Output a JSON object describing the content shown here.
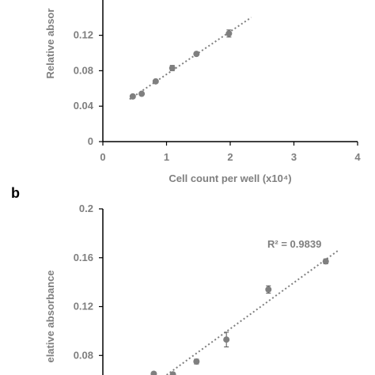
{
  "colors": {
    "axis": "#000000",
    "text": "#7f7f7f",
    "marker": "#7f7f7f",
    "trendline": "#7f7f7f"
  },
  "chart_data": [
    {
      "type": "scatter",
      "panel_label": "",
      "title": "",
      "xlabel": "Cell count per well (x10⁴)",
      "ylabel": "Relative absor",
      "xlim": [
        0,
        4
      ],
      "ylim": [
        0,
        0.15
      ],
      "x_ticks": [
        "0",
        "1",
        "2",
        "3",
        "4"
      ],
      "y_ticks": [
        "0",
        "0.04",
        "0.08",
        "0.12"
      ],
      "grid": false,
      "trendline": "linear dotted",
      "r_squared_label": "",
      "points": [
        {
          "x": 0.47,
          "y": 0.051,
          "err": 0.0
        },
        {
          "x": 0.61,
          "y": 0.054,
          "err": 0.0
        },
        {
          "x": 0.83,
          "y": 0.068,
          "err": 0.0
        },
        {
          "x": 1.09,
          "y": 0.083,
          "err": 0.003
        },
        {
          "x": 1.47,
          "y": 0.099,
          "err": 0.0
        },
        {
          "x": 1.98,
          "y": 0.122,
          "err": 0.004
        }
      ]
    },
    {
      "type": "scatter",
      "panel_label": "b",
      "title": "",
      "xlabel": "",
      "ylabel": "elative absorbance",
      "xlim": [
        0,
        4
      ],
      "ylim": [
        0.064,
        0.2
      ],
      "x_ticks": [],
      "y_ticks": [
        "0.2",
        "0.16",
        "0.12",
        "0.08"
      ],
      "grid": false,
      "trendline": "linear dotted",
      "r_squared_label": "R² = 0.9839",
      "points": [
        {
          "x": 0.8,
          "y": 0.065,
          "err": 0.0
        },
        {
          "x": 1.1,
          "y": 0.0645,
          "err": 0.0
        },
        {
          "x": 1.47,
          "y": 0.075,
          "err": 0.002
        },
        {
          "x": 1.94,
          "y": 0.093,
          "err": 0.006
        },
        {
          "x": 2.6,
          "y": 0.134,
          "err": 0.003
        },
        {
          "x": 3.5,
          "y": 0.157,
          "err": 0.002
        }
      ]
    }
  ]
}
